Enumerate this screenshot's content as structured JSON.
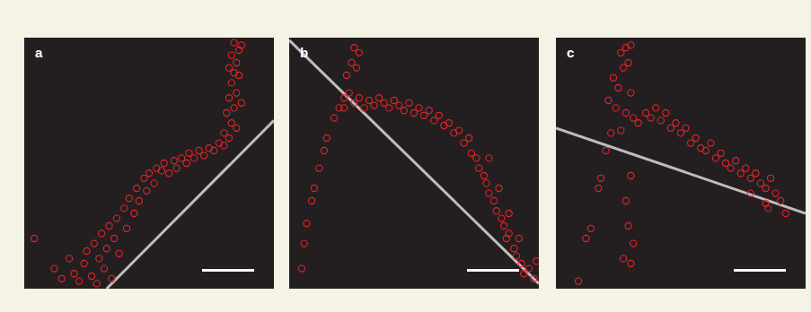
{
  "chart_data": [
    {
      "type": "scatter",
      "title": "a",
      "xlim": [
        0,
        100
      ],
      "ylim": [
        0,
        100
      ],
      "tick_labels": false,
      "series": [
        {
          "type": "scatter",
          "color": "#e8232b",
          "marker": "circle",
          "x": [
            4,
            12,
            15,
            18,
            20,
            22,
            24,
            25,
            27,
            28,
            29,
            30,
            31,
            32,
            33,
            34,
            35,
            36,
            37,
            38,
            40,
            41,
            42,
            44,
            45,
            46,
            48,
            49,
            50,
            52,
            53,
            55,
            56,
            58,
            60,
            61,
            63,
            65,
            66,
            68,
            70,
            72,
            74,
            76,
            78,
            80,
            82,
            83,
            81,
            84,
            82,
            85,
            83,
            86,
            82,
            85,
            83,
            86,
            84,
            87,
            80,
            85,
            87,
            84
          ],
          "values": [
            20,
            8,
            4,
            12,
            6,
            3,
            10,
            15,
            5,
            18,
            2,
            12,
            22,
            8,
            16,
            25,
            4,
            20,
            28,
            14,
            32,
            24,
            36,
            30,
            40,
            35,
            44,
            39,
            46,
            42,
            48,
            47,
            50,
            46,
            51,
            48,
            52,
            50,
            54,
            52,
            55,
            53,
            56,
            55,
            58,
            62,
            60,
            66,
            70,
            72,
            76,
            78,
            82,
            85,
            88,
            90,
            93,
            95,
            98,
            97,
            57,
            64,
            74,
            86
          ]
        },
        {
          "type": "line",
          "color": "#d9d9d9",
          "x": [
            33,
            100
          ],
          "values": [
            0,
            67
          ]
        }
      ]
    },
    {
      "type": "scatter",
      "title": "b",
      "xlim": [
        0,
        100
      ],
      "ylim": [
        0,
        100
      ],
      "tick_labels": false,
      "series": [
        {
          "type": "scatter",
          "color": "#e8232b",
          "marker": "circle",
          "x": [
            5,
            6,
            7,
            9,
            10,
            12,
            14,
            15,
            18,
            20,
            22,
            24,
            23,
            25,
            26,
            28,
            27,
            22,
            26,
            28,
            30,
            32,
            34,
            36,
            38,
            40,
            42,
            44,
            46,
            48,
            50,
            52,
            54,
            56,
            58,
            60,
            62,
            64,
            66,
            68,
            70,
            72,
            73,
            75,
            76,
            78,
            79,
            80,
            82,
            83,
            85,
            86,
            87,
            88,
            90,
            91,
            93,
            94,
            96,
            98,
            99,
            80,
            84,
            88,
            92
          ],
          "values": [
            8,
            18,
            26,
            35,
            40,
            48,
            55,
            60,
            68,
            72,
            76,
            78,
            85,
            90,
            96,
            94,
            88,
            72,
            74,
            76,
            72,
            75,
            73,
            76,
            74,
            72,
            75,
            73,
            71,
            74,
            70,
            72,
            69,
            71,
            67,
            69,
            65,
            66,
            62,
            63,
            58,
            60,
            54,
            52,
            48,
            45,
            42,
            38,
            35,
            31,
            28,
            25,
            20,
            22,
            16,
            13,
            10,
            6,
            8,
            4,
            11,
            52,
            40,
            30,
            20
          ]
        },
        {
          "type": "line",
          "color": "#d9d9d9",
          "x": [
            0,
            100
          ],
          "values": [
            99,
            2
          ]
        }
      ]
    },
    {
      "type": "scatter",
      "title": "c",
      "xlim": [
        0,
        100
      ],
      "ylim": [
        0,
        100
      ],
      "tick_labels": false,
      "series": [
        {
          "type": "scatter",
          "color": "#e8232b",
          "marker": "circle",
          "x": [
            9,
            12,
            14,
            17,
            18,
            20,
            22,
            24,
            25,
            27,
            26,
            28,
            30,
            29,
            23,
            21,
            30,
            28,
            31,
            26,
            33,
            36,
            38,
            40,
            42,
            44,
            46,
            48,
            50,
            52,
            54,
            56,
            58,
            60,
            62,
            64,
            66,
            68,
            70,
            72,
            74,
            76,
            78,
            80,
            82,
            84,
            86,
            88,
            90,
            84,
            78,
            30,
            28,
            29,
            31,
            27,
            30,
            92,
            85
          ],
          "values": [
            3,
            20,
            24,
            40,
            44,
            55,
            62,
            72,
            80,
            88,
            94,
            96,
            97,
            90,
            84,
            75,
            78,
            70,
            68,
            63,
            66,
            70,
            68,
            72,
            67,
            70,
            64,
            66,
            62,
            64,
            58,
            60,
            56,
            55,
            58,
            52,
            54,
            50,
            48,
            51,
            46,
            48,
            44,
            46,
            42,
            40,
            44,
            38,
            35,
            34,
            38,
            45,
            35,
            25,
            18,
            12,
            10,
            30,
            32
          ]
        },
        {
          "type": "line",
          "color": "#d9d9d9",
          "x": [
            0,
            100
          ],
          "values": [
            64,
            30
          ]
        }
      ]
    }
  ]
}
